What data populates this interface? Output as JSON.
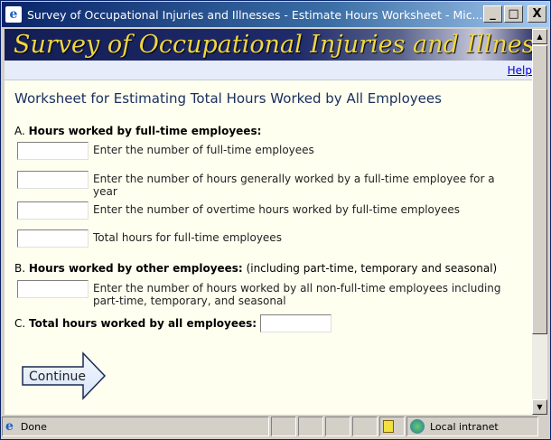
{
  "window": {
    "title": "Survey of Occupational Injuries and Illnesses - Estimate Hours Worksheet - Mic...",
    "minimize": "_",
    "maximize": "□",
    "close": "X"
  },
  "banner": {
    "text": "Survey of Occupational Injuries and Illnesses"
  },
  "help_link": "Help",
  "page_title": "Worksheet for Estimating Total Hours Worked by All Employees",
  "section_a": {
    "letter": "A.",
    "label": "Hours worked by full-time employees:",
    "fields": [
      {
        "label": "Enter the number of full-time employees",
        "value": ""
      },
      {
        "label": "Enter the number of hours generally worked by a full-time employee for a year",
        "value": ""
      },
      {
        "label": "Enter the number of overtime hours worked by full-time employees",
        "value": ""
      },
      {
        "label": "Total hours for full-time employees",
        "value": ""
      }
    ]
  },
  "section_b": {
    "letter": "B.",
    "label": "Hours worked by other employees:",
    "note": "(including part-time, temporary and seasonal)",
    "fields": [
      {
        "label": "Enter the number of hours worked by all non-full-time employees including part-time, temporary, and seasonal",
        "value": ""
      }
    ]
  },
  "section_c": {
    "letter": "C.",
    "label": "Total hours worked by all employees:",
    "value": ""
  },
  "continue_label": "Continue",
  "status": {
    "text": "Done",
    "zone": "Local intranet"
  },
  "colors": {
    "title_text": "#1a3060",
    "banner_text": "#f0d640",
    "page_bg": "#fffff0"
  }
}
